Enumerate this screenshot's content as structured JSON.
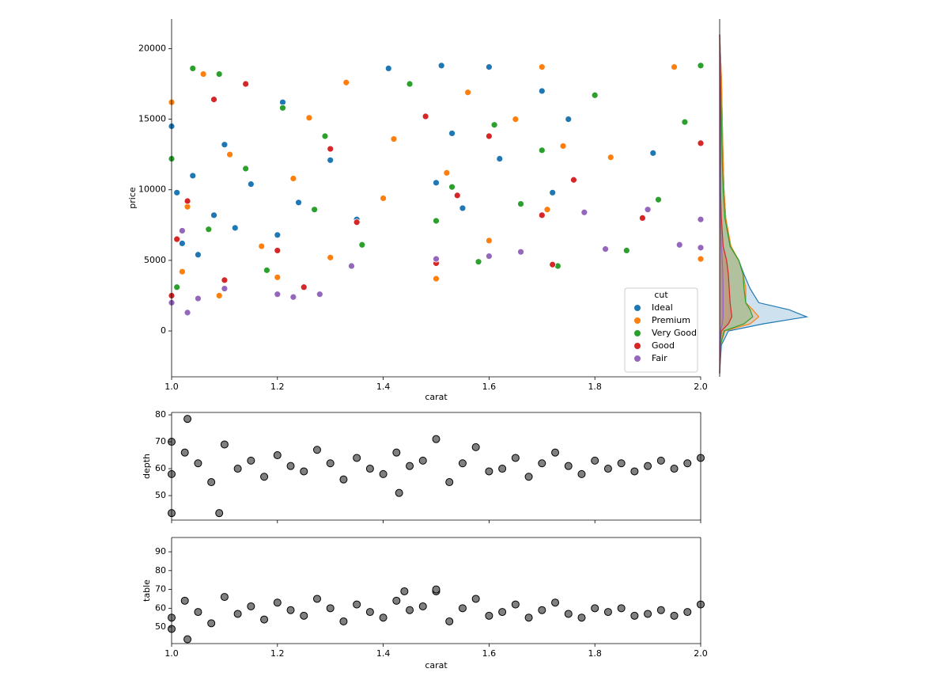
{
  "chart_data": [
    {
      "type": "scatter",
      "xlabel": "carat",
      "ylabel": "price",
      "xlim": [
        1.0,
        2.0
      ],
      "ylim": [
        -3250,
        22100
      ],
      "xticks": [
        {
          "value": 1.0,
          "label": "1.0"
        },
        {
          "value": 1.2,
          "label": "1.2"
        },
        {
          "value": 1.4,
          "label": "1.4"
        },
        {
          "value": 1.6,
          "label": "1.6"
        },
        {
          "value": 1.8,
          "label": "1.8"
        },
        {
          "value": 2.0,
          "label": "2.0"
        }
      ],
      "yticks": [
        0,
        5000,
        10000,
        15000,
        20000
      ],
      "legend_title": "cut",
      "legend_loc": "lower right",
      "series": [
        {
          "name": "Ideal",
          "color": "#1f77b4",
          "x": [
            1.0,
            1.01,
            1.02,
            1.04,
            1.05,
            1.08,
            1.1,
            1.12,
            1.15,
            1.2,
            1.21,
            1.24,
            1.3,
            1.35,
            1.41,
            1.5,
            1.51,
            1.53,
            1.55,
            1.6,
            1.62,
            1.7,
            1.72,
            1.75,
            1.91
          ],
          "y": [
            14500,
            9800,
            6200,
            11000,
            5400,
            8200,
            13200,
            7300,
            10400,
            6800,
            16200,
            9100,
            12100,
            7900,
            18600,
            10500,
            18800,
            14000,
            8700,
            18700,
            12200,
            17000,
            9800,
            15000,
            12600
          ]
        },
        {
          "name": "Premium",
          "color": "#ff7f0e",
          "x": [
            1.0,
            1.02,
            1.03,
            1.06,
            1.09,
            1.11,
            1.17,
            1.2,
            1.23,
            1.26,
            1.3,
            1.33,
            1.4,
            1.42,
            1.5,
            1.52,
            1.56,
            1.6,
            1.65,
            1.7,
            1.71,
            1.74,
            1.83,
            1.95,
            2.0
          ],
          "y": [
            16200,
            4200,
            8800,
            18200,
            2500,
            12500,
            6000,
            3800,
            10800,
            15100,
            5200,
            17600,
            9400,
            13600,
            3700,
            11200,
            16900,
            6400,
            15000,
            18700,
            8600,
            13100,
            12300,
            18700,
            5100
          ]
        },
        {
          "name": "Very Good",
          "color": "#2ca02c",
          "x": [
            1.0,
            1.01,
            1.04,
            1.07,
            1.09,
            1.14,
            1.18,
            1.21,
            1.27,
            1.29,
            1.36,
            1.45,
            1.5,
            1.53,
            1.58,
            1.61,
            1.66,
            1.7,
            1.73,
            1.8,
            1.86,
            1.92,
            1.97,
            2.0
          ],
          "y": [
            12200,
            3100,
            18600,
            7200,
            18200,
            11500,
            4300,
            15800,
            8600,
            13800,
            6100,
            17500,
            7800,
            10200,
            4900,
            14600,
            9000,
            12800,
            4600,
            16700,
            5700,
            9300,
            14800,
            18800
          ]
        },
        {
          "name": "Good",
          "color": "#d62728",
          "x": [
            1.0,
            1.01,
            1.03,
            1.08,
            1.1,
            1.14,
            1.2,
            1.25,
            1.3,
            1.35,
            1.48,
            1.5,
            1.54,
            1.6,
            1.7,
            1.72,
            1.76,
            1.89,
            2.0
          ],
          "y": [
            2500,
            6500,
            9200,
            16400,
            3600,
            17500,
            5700,
            3100,
            12900,
            7700,
            15200,
            4800,
            9600,
            13800,
            8200,
            4700,
            10700,
            8000,
            13300
          ]
        },
        {
          "name": "Fair",
          "color": "#9467bd",
          "x": [
            1.0,
            1.02,
            1.03,
            1.05,
            1.1,
            1.2,
            1.23,
            1.28,
            1.34,
            1.5,
            1.6,
            1.66,
            1.78,
            1.82,
            1.9,
            1.96,
            2.0,
            2.0
          ],
          "y": [
            2000,
            7100,
            1300,
            2300,
            3000,
            2600,
            2400,
            2600,
            4600,
            5100,
            5300,
            5600,
            8400,
            5800,
            8600,
            6100,
            7900,
            5900
          ]
        }
      ]
    },
    {
      "type": "kde",
      "xlim": [
        0,
        1
      ],
      "ylim": [
        -3250,
        22100
      ],
      "y": [
        -3000,
        -1000,
        0,
        500,
        1000,
        1500,
        2000,
        3000,
        4000,
        5000,
        6000,
        8000,
        10000,
        12000,
        15000,
        18000,
        21000
      ],
      "series": [
        {
          "color": "#1f77b4",
          "values": [
            0,
            0.02,
            0.1,
            0.5,
            1.0,
            0.8,
            0.45,
            0.35,
            0.28,
            0.22,
            0.12,
            0.07,
            0.05,
            0.04,
            0.03,
            0.02,
            0
          ]
        },
        {
          "color": "#ff7f0e",
          "values": [
            0,
            0.01,
            0.06,
            0.35,
            0.45,
            0.38,
            0.3,
            0.3,
            0.27,
            0.22,
            0.13,
            0.07,
            0.05,
            0.04,
            0.03,
            0.02,
            0
          ]
        },
        {
          "color": "#2ca02c",
          "values": [
            0,
            0.01,
            0.05,
            0.28,
            0.38,
            0.35,
            0.3,
            0.28,
            0.27,
            0.22,
            0.12,
            0.06,
            0.04,
            0.03,
            0.02,
            0.01,
            0
          ]
        },
        {
          "color": "#d62728",
          "values": [
            0,
            0.005,
            0.02,
            0.1,
            0.14,
            0.13,
            0.12,
            0.11,
            0.1,
            0.08,
            0.04,
            0.02,
            0.01,
            0.01,
            0.01,
            0.005,
            0
          ]
        },
        {
          "color": "#9467bd",
          "values": [
            0,
            0.002,
            0.01,
            0.03,
            0.04,
            0.04,
            0.04,
            0.04,
            0.035,
            0.03,
            0.02,
            0.01,
            0.005,
            0.003,
            0.002,
            0.001,
            0
          ]
        }
      ]
    },
    {
      "type": "scatter",
      "ylabel": "depth",
      "xlim": [
        1.0,
        2.0
      ],
      "ylim": [
        40.9,
        80.9
      ],
      "xticks": [
        1.0,
        1.2,
        1.4,
        1.6,
        1.8,
        2.0
      ],
      "yticks": [
        50,
        60,
        70,
        80
      ],
      "series": [
        {
          "color": "#808080",
          "x": [
            1.0,
            1.025,
            1.05,
            1.075,
            1.1,
            1.125,
            1.15,
            1.175,
            1.2,
            1.225,
            1.25,
            1.275,
            1.3,
            1.325,
            1.35,
            1.375,
            1.4,
            1.425,
            1.45,
            1.475,
            1.5,
            1.525,
            1.55,
            1.575,
            1.6,
            1.625,
            1.65,
            1.675,
            1.7,
            1.725,
            1.75,
            1.775,
            1.8,
            1.825,
            1.85,
            1.875,
            1.9,
            1.925,
            1.95,
            1.975,
            2.0,
            1.0,
            1.03,
            1.09,
            1.43,
            1.0
          ],
          "y": [
            58,
            66,
            62,
            55,
            69,
            60,
            63,
            57,
            65,
            61,
            59,
            67,
            62,
            56,
            64,
            60,
            58,
            66,
            61,
            63,
            71,
            55,
            62,
            68,
            59,
            60,
            64,
            57,
            62,
            66,
            61,
            58,
            63,
            60,
            62,
            59,
            61,
            63,
            60,
            62,
            64,
            43.5,
            78.5,
            43.5,
            51,
            70
          ]
        }
      ]
    },
    {
      "type": "scatter",
      "xlabel": "carat",
      "ylabel": "table",
      "xlim": [
        1.0,
        2.0
      ],
      "ylim": [
        41.2,
        97.6
      ],
      "xticks": [
        {
          "value": 1.0,
          "label": "1.0"
        },
        {
          "value": 1.2,
          "label": "1.2"
        },
        {
          "value": 1.4,
          "label": "1.4"
        },
        {
          "value": 1.6,
          "label": "1.6"
        },
        {
          "value": 1.8,
          "label": "1.8"
        },
        {
          "value": 2.0,
          "label": "2.0"
        }
      ],
      "yticks": [
        50,
        60,
        70,
        80,
        90
      ],
      "series": [
        {
          "color": "#808080",
          "x": [
            1.0,
            1.025,
            1.05,
            1.075,
            1.1,
            1.125,
            1.15,
            1.175,
            1.2,
            1.225,
            1.25,
            1.275,
            1.3,
            1.325,
            1.35,
            1.375,
            1.4,
            1.425,
            1.45,
            1.475,
            1.5,
            1.525,
            1.55,
            1.575,
            1.6,
            1.625,
            1.65,
            1.675,
            1.7,
            1.725,
            1.75,
            1.775,
            1.8,
            1.825,
            1.85,
            1.875,
            1.9,
            1.925,
            1.95,
            1.975,
            2.0,
            1.03,
            1.0,
            1.44,
            1.5
          ],
          "y": [
            55,
            64,
            58,
            52,
            66,
            57,
            61,
            54,
            63,
            59,
            56,
            65,
            60,
            53,
            62,
            58,
            55,
            64,
            59,
            61,
            69,
            53,
            60,
            65,
            56,
            58,
            62,
            55,
            59,
            63,
            57,
            55,
            60,
            58,
            60,
            56,
            57,
            59,
            56,
            58,
            62,
            43.5,
            49,
            69,
            70
          ]
        }
      ]
    }
  ]
}
